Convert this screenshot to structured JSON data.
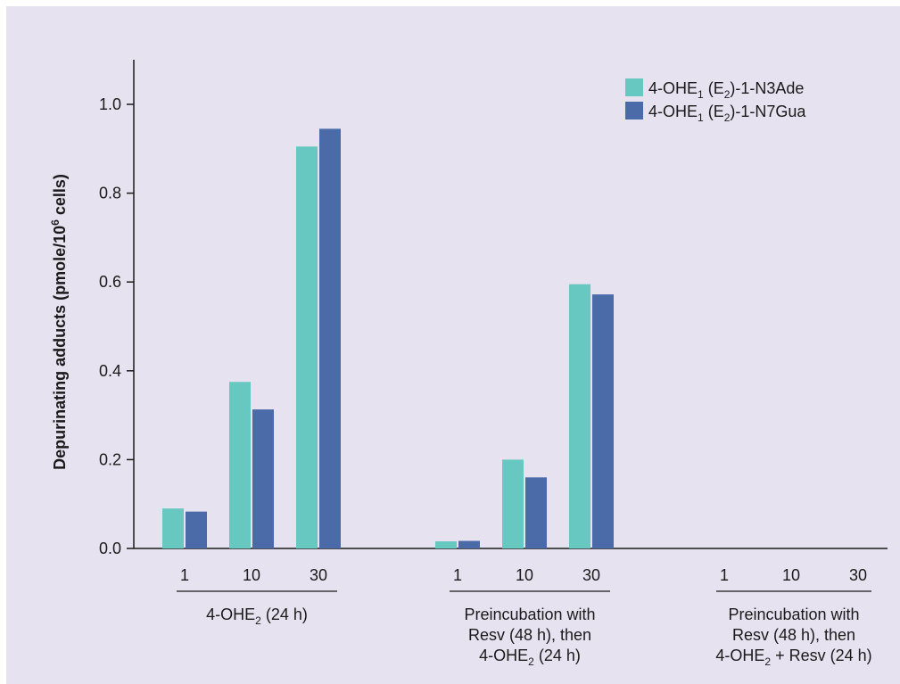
{
  "chart_data": {
    "type": "bar",
    "ylabel": {
      "text": "Depurinating adducts (pmole/10",
      "sup": "6",
      "tail": " cells)"
    },
    "ylim": [
      0,
      1.1
    ],
    "yticks": [
      "0.0",
      "0.2",
      "0.4",
      "0.6",
      "0.8",
      "1.0"
    ],
    "grid": false,
    "legend_position": "top-right",
    "colors": {
      "N3Ade": "#66c8c0",
      "N7Gua": "#4a6aa8",
      "background": "#e6e2ef"
    },
    "series": [
      {
        "name": "4-OHE1 (E2)-1-N3Ade",
        "legend_parts": {
          "a": "4-OHE",
          "s1": "1",
          "b": " (E",
          "s2": "2",
          "c": ")-1-N3Ade"
        }
      },
      {
        "name": "4-OHE1 (E2)-1-N7Gua",
        "legend_parts": {
          "a": "4-OHE",
          "s1": "1",
          "b": " (E",
          "s2": "2",
          "c": ")-1-N7Gua"
        }
      }
    ],
    "groups": [
      {
        "categories": [
          "1",
          "10",
          "30"
        ],
        "values": {
          "N3Ade": [
            0.09,
            0.375,
            0.905
          ],
          "N7Gua": [
            0.083,
            0.313,
            0.945
          ]
        },
        "label_lines": [
          {
            "a": "4-OHE",
            "s": "2",
            "b": " (24 h)"
          }
        ]
      },
      {
        "categories": [
          "1",
          "10",
          "30"
        ],
        "values": {
          "N3Ade": [
            0.016,
            0.2,
            0.595
          ],
          "N7Gua": [
            0.017,
            0.16,
            0.572
          ]
        },
        "label_lines": [
          {
            "a": "Preincubation with"
          },
          {
            "a": "Resv (48 h), then"
          },
          {
            "a": "4-OHE",
            "s": "2",
            "b": " (24 h)"
          }
        ]
      },
      {
        "categories": [
          "1",
          "10",
          "30"
        ],
        "values": {
          "N3Ade": [
            0,
            0,
            0
          ],
          "N7Gua": [
            0,
            0,
            0
          ]
        },
        "label_lines": [
          {
            "a": "Preincubation with"
          },
          {
            "a": "Resv (48 h), then"
          },
          {
            "a": "4-OHE",
            "s": "2",
            "b": " + Resv (24 h)"
          }
        ]
      }
    ]
  }
}
